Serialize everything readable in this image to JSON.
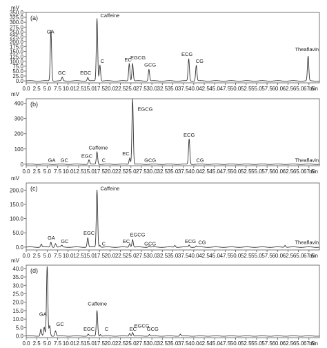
{
  "chart_data": [
    {
      "type": "line",
      "panel_label": "(a)",
      "y_unit": "mV",
      "x_unit": "min",
      "xlim": [
        0,
        70
      ],
      "x_ticks": [
        "0.0",
        "2.5",
        "5.0",
        "7.5",
        "10.0",
        "12.5",
        "15.0",
        "17.5",
        "20.0",
        "22.5",
        "25.0",
        "27.5",
        "30.0",
        "32.5",
        "35.0",
        "37.5",
        "40.0",
        "42.5",
        "45.0",
        "47.5",
        "50.0",
        "52.5",
        "55.0",
        "57.5",
        "60.0",
        "62.5",
        "65.0",
        "67.5"
      ],
      "ylim": [
        -10,
        350
      ],
      "y_ticks": [
        "0.0",
        "25.0",
        "50.0",
        "75.0",
        "100.0",
        "125.0",
        "150.0",
        "175.0",
        "200.0",
        "225.0",
        "250.0",
        "275.0",
        "300.0",
        "325.0",
        "350.0"
      ],
      "baseline": 0,
      "peaks": [
        {
          "name": "GA",
          "rt": 5.9,
          "height": 258,
          "labeled": true
        },
        {
          "name": "GC",
          "rt": 8.6,
          "height": 18,
          "labeled": true
        },
        {
          "name": "EGC",
          "rt": 14.7,
          "height": 17,
          "labeled": true
        },
        {
          "name": "Caffeine",
          "rt": 16.9,
          "height": 318,
          "labeled": true
        },
        {
          "name": "C",
          "rt": 17.6,
          "height": 80,
          "labeled": true
        },
        {
          "name": "EC",
          "rt": 24.6,
          "height": 88,
          "labeled": true
        },
        {
          "name": "EGCG",
          "rt": 25.4,
          "height": 88,
          "labeled": true
        },
        {
          "name": "GCG",
          "rt": 29.3,
          "height": 58,
          "labeled": true
        },
        {
          "name": "ECG",
          "rt": 38.8,
          "height": 112,
          "labeled": true
        },
        {
          "name": "CG",
          "rt": 40.6,
          "height": 78,
          "labeled": true
        },
        {
          "name": "Theaflavin",
          "rt": 67.3,
          "height": 125,
          "labeled": true
        }
      ],
      "labels": [
        {
          "text": "GA",
          "x": 5.8,
          "y": 242
        },
        {
          "text": "GC",
          "x": 8.5,
          "y": 33
        },
        {
          "text": "EGC",
          "x": 14.2,
          "y": 32
        },
        {
          "text": "Caffeine",
          "x": 20.0,
          "y": 325
        },
        {
          "text": "C",
          "x": 18.2,
          "y": 92
        },
        {
          "text": "EC",
          "x": 24.3,
          "y": 100
        },
        {
          "text": "EGCG",
          "x": 26.7,
          "y": 110
        },
        {
          "text": "GCG",
          "x": 29.6,
          "y": 73
        },
        {
          "text": "ECG",
          "x": 38.4,
          "y": 128
        },
        {
          "text": "CG",
          "x": 41.4,
          "y": 92
        },
        {
          "text": "Theaflavin",
          "x": 67.0,
          "y": 153
        }
      ]
    },
    {
      "type": "line",
      "panel_label": "(b)",
      "y_unit": "mV",
      "x_unit": "min",
      "xlim": [
        0,
        70
      ],
      "x_ticks": [
        "0.0",
        "2.5",
        "5.0",
        "7.5",
        "10.0",
        "12.5",
        "15.0",
        "17.5",
        "20.0",
        "22.5",
        "25.0",
        "27.5",
        "30.0",
        "32.5",
        "35.0",
        "37.5",
        "40.0",
        "42.5",
        "45.0",
        "47.5",
        "50.0",
        "52.5",
        "55.0",
        "57.5",
        "60.0",
        "62.5",
        "65.0",
        "67.5"
      ],
      "ylim": [
        -10,
        430
      ],
      "y_ticks": [
        "0",
        "100",
        "200",
        "300",
        "400"
      ],
      "baseline": 0,
      "peaks": [
        {
          "name": "EGC",
          "rt": 15.0,
          "height": 28,
          "labeled": true
        },
        {
          "name": "Caffeine",
          "rt": 16.9,
          "height": 80,
          "labeled": true
        },
        {
          "name": "EC",
          "rt": 24.7,
          "height": 40,
          "labeled": true
        },
        {
          "name": "EGCG",
          "rt": 25.4,
          "height": 425,
          "labeled": true
        },
        {
          "name": "ECG",
          "rt": 38.9,
          "height": 165,
          "labeled": true
        }
      ],
      "labels": [
        {
          "text": "GA",
          "x": 6.1,
          "y": 16
        },
        {
          "text": "GC",
          "x": 9.1,
          "y": 16
        },
        {
          "text": "EGC",
          "x": 14.5,
          "y": 43
        },
        {
          "text": "Caffeine",
          "x": 17.2,
          "y": 97
        },
        {
          "text": "C",
          "x": 18.5,
          "y": 16
        },
        {
          "text": "EC",
          "x": 23.8,
          "y": 57
        },
        {
          "text": "EGCG",
          "x": 28.4,
          "y": 350
        },
        {
          "text": "GCG",
          "x": 29.6,
          "y": 16
        },
        {
          "text": "ECG",
          "x": 38.9,
          "y": 181
        },
        {
          "text": "CG",
          "x": 41.5,
          "y": 16
        },
        {
          "text": "Theaflavin",
          "x": 67.0,
          "y": 16
        }
      ]
    },
    {
      "type": "line",
      "panel_label": "(c)",
      "y_unit": "mV",
      "x_unit": "min",
      "xlim": [
        0,
        70
      ],
      "x_ticks": [
        "0.0",
        "2.5",
        "5.0",
        "7.5",
        "10.0",
        "12.5",
        "15.0",
        "17.5",
        "20.0",
        "22.5",
        "25.0",
        "27.5",
        "30.0",
        "32.5",
        "35.0",
        "37.5",
        "40.0",
        "42.5",
        "45.0",
        "47.5",
        "50.0",
        "52.5",
        "55.0",
        "57.5",
        "60.0",
        "62.5",
        "65.0",
        "67.5"
      ],
      "ylim": [
        -10,
        225
      ],
      "y_ticks": [
        "0.0",
        "50.0",
        "100.0",
        "150.0",
        "200.0"
      ],
      "baseline": 0,
      "peaks": [
        {
          "name": "",
          "rt": 3.6,
          "height": 10,
          "labeled": false
        },
        {
          "name": "GA",
          "rt": 5.9,
          "height": 17,
          "labeled": true
        },
        {
          "name": "",
          "rt": 7.0,
          "height": 12,
          "labeled": false
        },
        {
          "name": "GC",
          "rt": 8.5,
          "height": 6,
          "labeled": true
        },
        {
          "name": "EGC",
          "rt": 14.7,
          "height": 32,
          "labeled": true
        },
        {
          "name": "Caffeine",
          "rt": 16.9,
          "height": 200,
          "labeled": true
        },
        {
          "name": "C",
          "rt": 17.6,
          "height": 6,
          "labeled": true
        },
        {
          "name": "EC",
          "rt": 24.7,
          "height": 12,
          "labeled": true
        },
        {
          "name": "EGCG",
          "rt": 25.4,
          "height": 26,
          "labeled": true
        },
        {
          "name": "GCG",
          "rt": 29.3,
          "height": 4,
          "labeled": true
        },
        {
          "name": "",
          "rt": 35.5,
          "height": 6,
          "labeled": false
        },
        {
          "name": "ECG",
          "rt": 38.9,
          "height": 7,
          "labeled": true
        },
        {
          "name": "CG",
          "rt": 40.6,
          "height": 4,
          "labeled": true
        },
        {
          "name": "",
          "rt": 61.8,
          "height": 6,
          "labeled": false
        }
      ],
      "labels": [
        {
          "text": "GA",
          "x": 6.0,
          "y": 26
        },
        {
          "text": "GC",
          "x": 9.2,
          "y": 14
        },
        {
          "text": "EGC",
          "x": 15.0,
          "y": 43
        },
        {
          "text": "Caffeine",
          "x": 20.0,
          "y": 200
        },
        {
          "text": "C",
          "x": 18.5,
          "y": 6
        },
        {
          "text": "EC",
          "x": 23.9,
          "y": 14
        },
        {
          "text": "EGCG",
          "x": 26.6,
          "y": 37
        },
        {
          "text": "GCG",
          "x": 29.6,
          "y": 6
        },
        {
          "text": "ECG",
          "x": 39.2,
          "y": 14
        },
        {
          "text": "CG",
          "x": 42.0,
          "y": 10
        },
        {
          "text": "Theaflavin",
          "x": 67.0,
          "y": 10
        }
      ]
    },
    {
      "type": "line",
      "panel_label": "(d)",
      "y_unit": "mV",
      "x_unit": "min",
      "xlim": [
        0,
        70
      ],
      "x_ticks": [
        "0.0",
        "2.5",
        "5.0",
        "7.5",
        "10.0",
        "12.5",
        "15.0",
        "17.5",
        "20.0",
        "22.5",
        "25.0",
        "27.5",
        "30.0",
        "32.5",
        "35.0",
        "37.5",
        "40.0",
        "42.5",
        "45.0",
        "47.5",
        "50.0",
        "52.5",
        "55.0",
        "57.5",
        "60.0",
        "62.5",
        "65.0",
        "67.5"
      ],
      "ylim": [
        -1,
        42
      ],
      "y_ticks": [
        "0.0",
        "5.0",
        "10.0",
        "15.0",
        "20.0",
        "25.0",
        "30.0",
        "35.0",
        "40.0"
      ],
      "baseline": 0,
      "peaks": [
        {
          "name": "",
          "rt": 3.5,
          "height": 4,
          "labeled": false
        },
        {
          "name": "GA",
          "rt": 4.3,
          "height": 5,
          "labeled": true
        },
        {
          "name": "",
          "rt": 5.0,
          "height": 41,
          "labeled": false
        },
        {
          "name": "",
          "rt": 5.6,
          "height": 6,
          "labeled": false
        },
        {
          "name": "GC",
          "rt": 7.0,
          "height": 3,
          "labeled": true
        },
        {
          "name": "EGC",
          "rt": 14.8,
          "height": 1,
          "labeled": true
        },
        {
          "name": "Caffeine",
          "rt": 16.9,
          "height": 15,
          "labeled": true
        },
        {
          "name": "C",
          "rt": 17.7,
          "height": 0.8,
          "labeled": true
        },
        {
          "name": "EC",
          "rt": 24.7,
          "height": 1.5,
          "labeled": true
        },
        {
          "name": "EGCG",
          "rt": 25.4,
          "height": 2,
          "labeled": true
        },
        {
          "name": "GCG",
          "rt": 29.4,
          "height": 0.8,
          "labeled": true
        },
        {
          "name": "",
          "rt": 36.8,
          "height": 1,
          "labeled": false
        }
      ],
      "labels": [
        {
          "text": "GA",
          "x": 4.0,
          "y": 12
        },
        {
          "text": "GC",
          "x": 8.1,
          "y": 6
        },
        {
          "text": "EGC",
          "x": 15.0,
          "y": 3
        },
        {
          "text": "Caffeine",
          "x": 17.0,
          "y": 18
        },
        {
          "text": "C",
          "x": 19.2,
          "y": 3
        },
        {
          "text": "EC",
          "x": 25.5,
          "y": 3
        },
        {
          "text": "EGCG",
          "x": 27.6,
          "y": 5
        },
        {
          "text": "GCG",
          "x": 30.2,
          "y": 3
        }
      ]
    }
  ]
}
